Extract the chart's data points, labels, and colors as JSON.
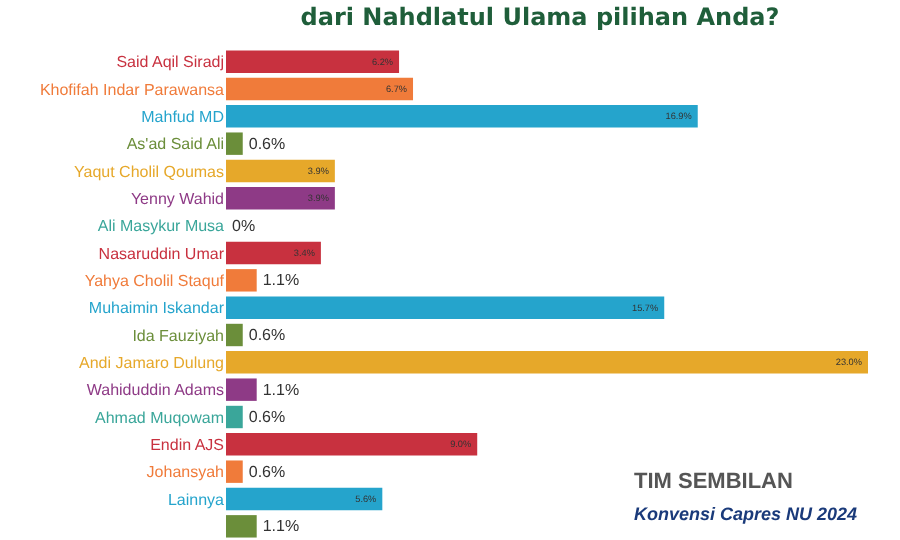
{
  "chart_data": {
    "type": "bar",
    "orientation": "horizontal",
    "title": "dari Nahdlatul Ulama pilihan Anda?",
    "categories": [
      "Said Aqil Siradj",
      "Khofifah Indar Parawansa",
      "Mahfud MD",
      "As'ad Said Ali",
      "Yaqut Cholil Qoumas",
      "Yenny Wahid",
      "Ali Masykur Musa",
      "Nasaruddin Umar",
      "Yahya Cholil Staquf",
      "Muhaimin Iskandar",
      "Ida Fauziyah",
      "Andi Jamaro Dulung",
      "Wahiduddin Adams",
      "Ahmad Muqowam",
      "Endin AJS",
      "Johansyah",
      "Lainnya",
      null
    ],
    "values": [
      6.2,
      6.7,
      16.9,
      0.6,
      3.9,
      3.9,
      0,
      3.4,
      1.1,
      15.7,
      0.6,
      23.0,
      1.1,
      0.6,
      9.0,
      0.6,
      5.6,
      1.1
    ],
    "value_labels": [
      "6.2%",
      "6.7%",
      "16.9%",
      "0.6%",
      "3.9%",
      "3.9%",
      "0%",
      "3.4%",
      "1.1%",
      "15.7%",
      "0.6%",
      "23.0%",
      "1.1%",
      "0.6%",
      "9.0%",
      "0.6%",
      "5.6%",
      "1.1%"
    ],
    "colors": [
      "#c8313f",
      "#f07b3a",
      "#25a4cc",
      "#6b8e3a",
      "#e6a82a",
      "#8e3a86",
      "#3aa69a",
      "#c8313f",
      "#f07b3a",
      "#25a4cc",
      "#6b8e3a",
      "#e6a82a",
      "#8e3a86",
      "#3aa69a",
      "#c8313f",
      "#f07b3a",
      "#25a4cc",
      "#6b8e3a"
    ],
    "annotations": [
      "TIM SEMBILAN",
      "Konvensi Capres NU 2024"
    ],
    "legend": false
  }
}
